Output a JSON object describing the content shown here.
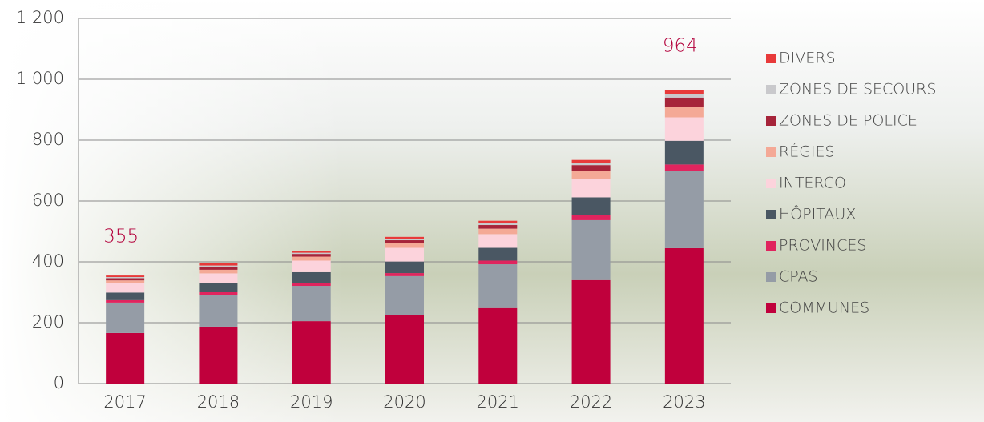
{
  "chart_data": {
    "type": "stacked-bar",
    "categories": [
      "2017",
      "2018",
      "2019",
      "2020",
      "2021",
      "2022",
      "2023"
    ],
    "series": [
      {
        "name": "COMMUNES",
        "color": "#c0003c",
        "values": [
          166,
          187,
          205,
          224,
          248,
          340,
          445
        ]
      },
      {
        "name": "CPAS",
        "color": "#959ca6",
        "values": [
          100,
          105,
          116,
          129,
          144,
          197,
          255
        ]
      },
      {
        "name": "PROVINCES",
        "color": "#e0245e",
        "values": [
          8,
          8,
          10,
          10,
          12,
          17,
          20
        ]
      },
      {
        "name": "HÔPITAUX",
        "color": "#4a5763",
        "values": [
          25,
          30,
          35,
          38,
          42,
          58,
          78
        ]
      },
      {
        "name": "INTERCO",
        "color": "#fcd3dc",
        "values": [
          30,
          32,
          38,
          45,
          45,
          60,
          77
        ]
      },
      {
        "name": "RÉGIES",
        "color": "#f4a996",
        "values": [
          10,
          12,
          13,
          15,
          18,
          28,
          35
        ]
      },
      {
        "name": "ZONES DE POLICE",
        "color": "#a6243a",
        "values": [
          7,
          9,
          9,
          10,
          12,
          18,
          30
        ]
      },
      {
        "name": "ZONES DE SECOURS",
        "color": "#c9c9cc",
        "values": [
          4,
          5,
          4,
          5,
          6,
          7,
          12
        ]
      },
      {
        "name": "DIVERS",
        "color": "#e83a3a",
        "values": [
          5,
          7,
          5,
          6,
          8,
          10,
          12
        ]
      }
    ],
    "annotations": [
      {
        "x": "2017",
        "value": 355
      },
      {
        "x": "2023",
        "value": 964
      }
    ],
    "ylim": [
      0,
      1200
    ],
    "yticks": [
      0,
      200,
      400,
      600,
      800,
      {
        "value": 1000,
        "label": "1 000"
      },
      {
        "value": 1200,
        "label": "1 200"
      }
    ],
    "grid": true
  }
}
